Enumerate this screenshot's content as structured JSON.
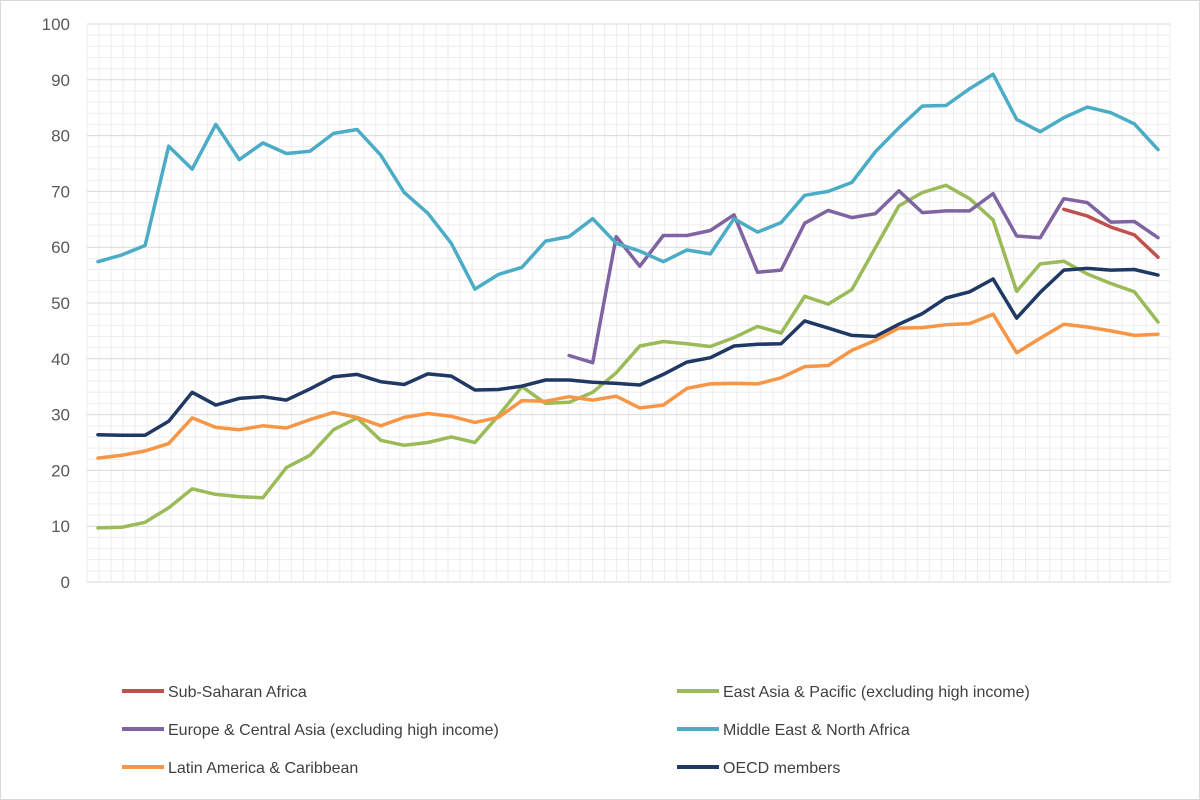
{
  "chart_data": {
    "type": "line",
    "title": "",
    "xlabel": "",
    "ylabel": "",
    "ylim": [
      0,
      100
    ],
    "yticks": [
      0,
      10,
      20,
      30,
      40,
      50,
      60,
      70,
      80,
      90,
      100
    ],
    "grid": true,
    "legend_position": "bottom",
    "n_points": 46,
    "series": [
      {
        "name": "Sub-Saharan Africa",
        "color": "#c0504d",
        "values": [
          null,
          null,
          null,
          null,
          null,
          null,
          null,
          null,
          null,
          null,
          null,
          null,
          null,
          null,
          null,
          null,
          null,
          null,
          null,
          null,
          null,
          null,
          null,
          null,
          null,
          null,
          null,
          null,
          null,
          null,
          null,
          null,
          null,
          null,
          null,
          null,
          null,
          null,
          null,
          null,
          null,
          66.8,
          65.6,
          63.6,
          62.2,
          58.2
        ]
      },
      {
        "name": "East Asia & Pacific (excluding high income)",
        "color": "#9bbb59",
        "values": [
          9.7,
          9.8,
          10.7,
          13.3,
          16.7,
          15.7,
          15.3,
          15.1,
          20.5,
          22.7,
          27.3,
          29.4,
          25.4,
          24.5,
          25.0,
          26.0,
          25.0,
          29.8,
          35.0,
          32.0,
          32.2,
          34.0,
          37.5,
          42.3,
          43.1,
          42.7,
          42.2,
          43.8,
          45.8,
          44.6,
          51.2,
          49.8,
          52.4,
          59.9,
          67.4,
          69.8,
          71.1,
          68.7,
          64.9,
          52.1,
          57.0,
          57.5,
          55.2,
          53.5,
          52.0,
          46.6
        ]
      },
      {
        "name": "Europe & Central Asia (excluding high income)",
        "color": "#8064a2",
        "values": [
          null,
          null,
          null,
          null,
          null,
          null,
          null,
          null,
          null,
          null,
          null,
          null,
          null,
          null,
          null,
          null,
          null,
          null,
          null,
          null,
          40.6,
          39.3,
          61.9,
          56.6,
          62.1,
          62.1,
          63.0,
          65.8,
          55.5,
          55.9,
          64.3,
          66.6,
          65.3,
          66.0,
          70.1,
          66.2,
          66.5,
          66.5,
          69.6,
          62.0,
          61.7,
          68.7,
          68.0,
          64.5,
          64.6,
          61.7
        ]
      },
      {
        "name": "Middle East & North Africa",
        "color": "#4bacc6",
        "values": [
          57.4,
          58.6,
          60.3,
          78.1,
          74.0,
          82.0,
          75.7,
          78.7,
          76.8,
          77.2,
          80.4,
          81.1,
          76.5,
          69.8,
          66.1,
          60.7,
          52.5,
          55.1,
          56.4,
          61.1,
          61.9,
          65.1,
          60.7,
          59.3,
          57.4,
          59.5,
          58.8,
          65.1,
          62.7,
          64.4,
          69.3,
          70.0,
          71.6,
          77.1,
          81.4,
          85.3,
          85.4,
          88.4,
          91.0,
          82.9,
          80.7,
          83.2,
          85.1,
          84.1,
          82.1,
          77.5
        ]
      },
      {
        "name": "Latin America & Caribbean",
        "color": "#f79646",
        "values": [
          22.2,
          22.7,
          23.5,
          24.8,
          29.4,
          27.7,
          27.3,
          28.0,
          27.6,
          29.1,
          30.4,
          29.5,
          28.0,
          29.5,
          30.2,
          29.7,
          28.6,
          29.5,
          32.5,
          32.4,
          33.2,
          32.6,
          33.3,
          31.2,
          31.7,
          34.7,
          35.5,
          35.6,
          35.5,
          36.6,
          38.6,
          38.8,
          41.5,
          43.3,
          45.5,
          45.6,
          46.1,
          46.3,
          48.0,
          41.1,
          43.7,
          46.2,
          45.7,
          45.0,
          44.2,
          44.4
        ]
      },
      {
        "name": "OECD members",
        "color": "#1f3864",
        "values": [
          26.4,
          26.3,
          26.3,
          28.8,
          34.0,
          31.7,
          32.9,
          33.2,
          32.6,
          34.6,
          36.8,
          37.2,
          35.9,
          35.4,
          37.3,
          36.9,
          34.4,
          34.5,
          35.1,
          36.2,
          36.2,
          35.8,
          35.6,
          35.3,
          37.2,
          39.4,
          40.2,
          42.3,
          42.6,
          42.7,
          46.8,
          45.5,
          44.2,
          44.0,
          46.2,
          48.1,
          50.9,
          52.0,
          54.3,
          47.3,
          51.9,
          55.9,
          56.2,
          55.9,
          56.0,
          55.0
        ]
      }
    ]
  }
}
